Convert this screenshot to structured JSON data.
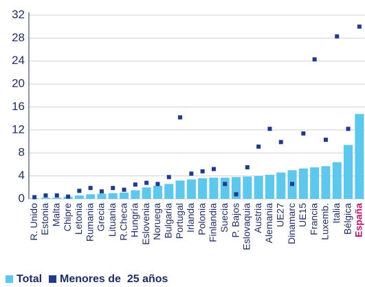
{
  "chart_data": {
    "type": "bar",
    "categories": [
      "R. Unido",
      "Estonia",
      "Malta",
      "Chipre",
      "Letonia",
      "Rumania",
      "Grecia",
      "Lituania",
      "R.Checa",
      "Hungría",
      "Eslovenia",
      "Noruega",
      "Bulgaria",
      "Portugal",
      "Irlanda",
      "Polonia",
      "Finlandia",
      "Suecia",
      "P. Bajos",
      "Eslovaquia",
      "Austria",
      "Alemania",
      "UE27",
      "Dinamarc",
      "UE15",
      "Francia",
      "Luxemb.",
      "Italia",
      "Bélgica",
      "España"
    ],
    "series": [
      {
        "name": "Total",
        "type": "bar",
        "color": "#5cc8ee",
        "values": [
          0.1,
          0.2,
          0.2,
          0.4,
          0.6,
          0.8,
          0.9,
          1.0,
          1.1,
          1.5,
          2.0,
          2.3,
          2.6,
          3.2,
          3.4,
          3.6,
          3.7,
          3.7,
          3.8,
          3.9,
          4.0,
          4.2,
          4.6,
          5.0,
          5.3,
          5.5,
          5.7,
          6.4,
          9.4,
          14.8
        ]
      },
      {
        "name": "Menores de  25 años",
        "type": "scatter",
        "color": "#1f3a8f",
        "values": [
          0.3,
          0.6,
          0.6,
          0.4,
          1.4,
          1.9,
          1.3,
          1.9,
          1.6,
          2.5,
          2.8,
          2.6,
          3.8,
          14.2,
          4.4,
          4.8,
          5.2,
          2.6,
          0.8,
          5.5,
          9.1,
          12.2,
          9.9,
          2.6,
          11.4,
          24.3,
          10.3,
          28.3,
          12.2,
          30.0
        ]
      }
    ],
    "ylim": [
      0,
      32
    ],
    "yticks": [
      0,
      4,
      8,
      12,
      16,
      20,
      24,
      28,
      32
    ],
    "grid": true,
    "legend": "bottom-left",
    "highlight": {
      "index": 29,
      "color": "#c4166f"
    }
  }
}
